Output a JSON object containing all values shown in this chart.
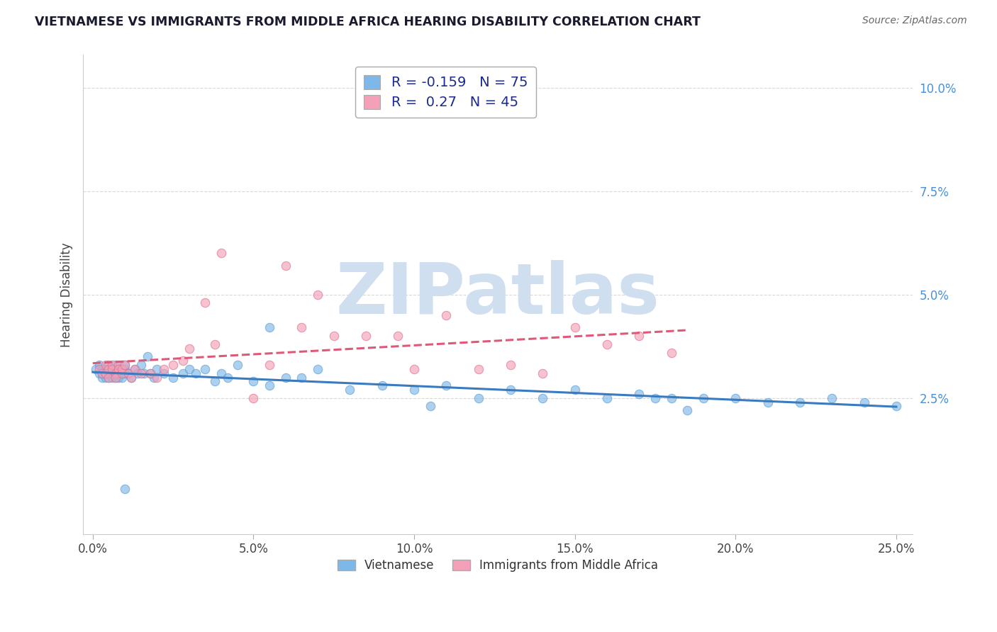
{
  "title": "VIETNAMESE VS IMMIGRANTS FROM MIDDLE AFRICA HEARING DISABILITY CORRELATION CHART",
  "source": "Source: ZipAtlas.com",
  "ylabel": "Hearing Disability",
  "xlim": [
    -0.003,
    0.255
  ],
  "ylim": [
    -0.008,
    0.108
  ],
  "x_ticks": [
    0.0,
    0.05,
    0.1,
    0.15,
    0.2,
    0.25
  ],
  "x_tick_labels": [
    "0.0%",
    "5.0%",
    "10.0%",
    "15.0%",
    "20.0%",
    "25.0%"
  ],
  "y_ticks": [
    0.025,
    0.05,
    0.075,
    0.1
  ],
  "y_tick_labels": [
    "2.5%",
    "5.0%",
    "7.5%",
    "10.0%"
  ],
  "series1_color": "#7eb8e8",
  "series2_color": "#f4a0b8",
  "series1_edge": "#5a9fd4",
  "series2_edge": "#e07090",
  "series1_label": "Vietnamese",
  "series2_label": "Immigrants from Middle Africa",
  "series1_R": -0.159,
  "series1_N": 75,
  "series2_R": 0.27,
  "series2_N": 45,
  "trend1_color": "#3a7abf",
  "trend2_color": "#e05878",
  "trend1_style": "solid",
  "trend2_style": "dashed",
  "watermark": "ZIPatlas",
  "watermark_color": "#cfdff0",
  "background_color": "#ffffff",
  "legend_text_color": "#1a2a8e",
  "title_color": "#1a1a2e",
  "grid_color": "#d8d8d8",
  "ytick_color": "#4a90d9",
  "series1_x": [
    0.001,
    0.002,
    0.002,
    0.003,
    0.003,
    0.003,
    0.004,
    0.004,
    0.004,
    0.005,
    0.005,
    0.005,
    0.006,
    0.006,
    0.006,
    0.007,
    0.007,
    0.007,
    0.007,
    0.008,
    0.008,
    0.008,
    0.009,
    0.009,
    0.01,
    0.01,
    0.01,
    0.011,
    0.012,
    0.013,
    0.014,
    0.015,
    0.016,
    0.017,
    0.018,
    0.019,
    0.02,
    0.022,
    0.025,
    0.028,
    0.03,
    0.032,
    0.035,
    0.038,
    0.04,
    0.042,
    0.045,
    0.05,
    0.055,
    0.06,
    0.065,
    0.07,
    0.08,
    0.09,
    0.1,
    0.11,
    0.12,
    0.13,
    0.14,
    0.15,
    0.16,
    0.17,
    0.18,
    0.19,
    0.2,
    0.21,
    0.22,
    0.23,
    0.24,
    0.25,
    0.175,
    0.185,
    0.105,
    0.055,
    0.01
  ],
  "series1_y": [
    0.032,
    0.033,
    0.031,
    0.032,
    0.03,
    0.031,
    0.03,
    0.032,
    0.031,
    0.033,
    0.03,
    0.031,
    0.03,
    0.032,
    0.031,
    0.033,
    0.031,
    0.03,
    0.032,
    0.032,
    0.03,
    0.031,
    0.03,
    0.031,
    0.032,
    0.031,
    0.033,
    0.031,
    0.03,
    0.032,
    0.031,
    0.033,
    0.031,
    0.035,
    0.031,
    0.03,
    0.032,
    0.031,
    0.03,
    0.031,
    0.032,
    0.031,
    0.032,
    0.029,
    0.031,
    0.03,
    0.033,
    0.029,
    0.028,
    0.03,
    0.03,
    0.032,
    0.027,
    0.028,
    0.027,
    0.028,
    0.025,
    0.027,
    0.025,
    0.027,
    0.025,
    0.026,
    0.025,
    0.025,
    0.025,
    0.024,
    0.024,
    0.025,
    0.024,
    0.023,
    0.025,
    0.022,
    0.023,
    0.042,
    0.003
  ],
  "series2_x": [
    0.002,
    0.003,
    0.004,
    0.004,
    0.005,
    0.005,
    0.006,
    0.006,
    0.007,
    0.007,
    0.008,
    0.008,
    0.009,
    0.009,
    0.01,
    0.011,
    0.012,
    0.013,
    0.015,
    0.018,
    0.02,
    0.022,
    0.025,
    0.028,
    0.03,
    0.035,
    0.038,
    0.04,
    0.05,
    0.055,
    0.06,
    0.065,
    0.07,
    0.075,
    0.085,
    0.095,
    0.1,
    0.11,
    0.12,
    0.13,
    0.14,
    0.15,
    0.16,
    0.17,
    0.18
  ],
  "series2_y": [
    0.032,
    0.031,
    0.031,
    0.033,
    0.032,
    0.03,
    0.033,
    0.032,
    0.031,
    0.03,
    0.033,
    0.032,
    0.031,
    0.032,
    0.033,
    0.031,
    0.03,
    0.032,
    0.031,
    0.031,
    0.03,
    0.032,
    0.033,
    0.034,
    0.037,
    0.048,
    0.038,
    0.06,
    0.025,
    0.033,
    0.057,
    0.042,
    0.05,
    0.04,
    0.04,
    0.04,
    0.032,
    0.045,
    0.032,
    0.033,
    0.031,
    0.042,
    0.038,
    0.04,
    0.036
  ]
}
